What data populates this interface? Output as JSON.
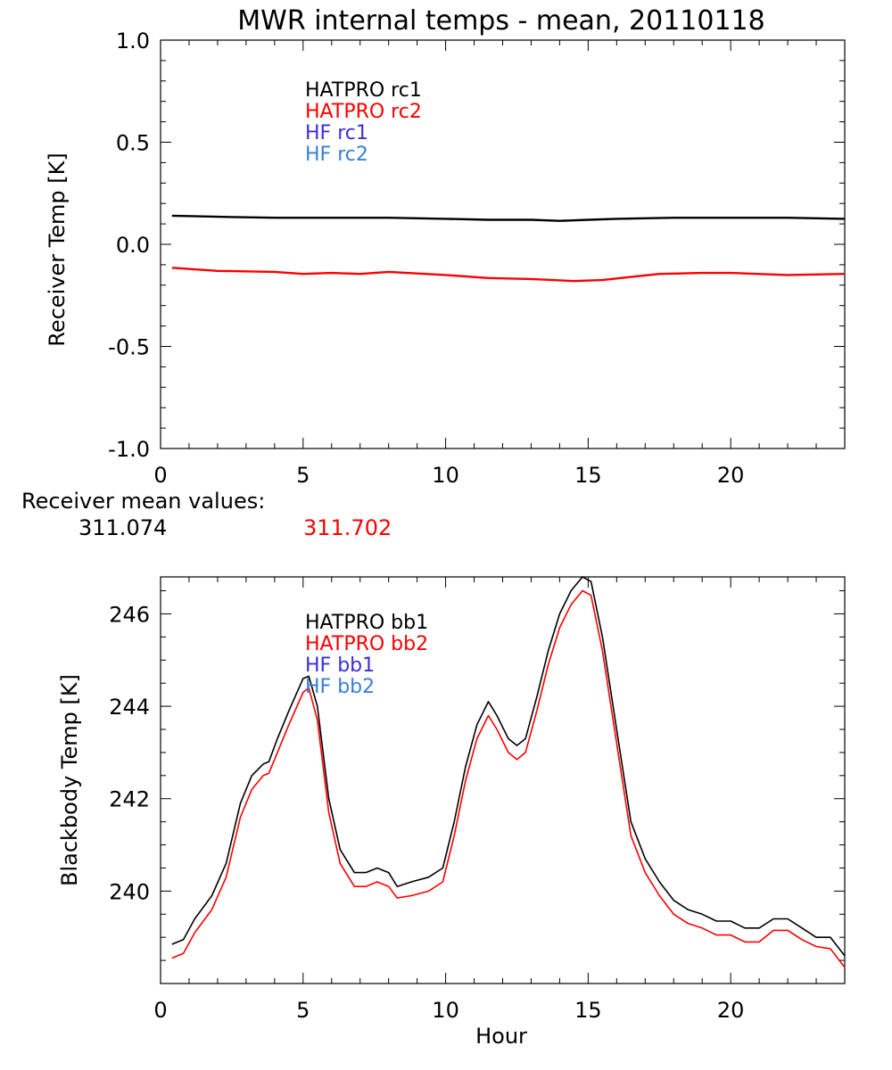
{
  "title": "MWR internal temps - mean, 20110118",
  "colors": {
    "black": "#000000",
    "red": "#ff0000",
    "blue": "#3b2fd6",
    "lightblue": "#3a7fd9"
  },
  "receiver_mean": {
    "label": "Receiver mean values:",
    "value1": "311.074",
    "value2": "311.702"
  },
  "chart_data": [
    {
      "type": "line",
      "xlabel": "",
      "ylabel": "Receiver Temp [K]",
      "xlim": [
        0,
        24
      ],
      "ylim": [
        -1.0,
        1.0
      ],
      "xticks": [
        "0",
        "5",
        "10",
        "15",
        "20"
      ],
      "yticks": [
        "1.0",
        "0.5",
        "0.0",
        "-0.5",
        "-1.0"
      ],
      "legend": [
        "HATPRO rc1",
        "HATPRO rc2",
        "HF rc1",
        "HF rc2"
      ],
      "legend_colors": [
        "#000000",
        "#ff0000",
        "#3b2fd6",
        "#3a7fd9"
      ],
      "series": [
        {
          "name": "HATPRO rc1",
          "color": "#000000",
          "x": [
            0.4,
            2,
            4,
            6,
            8,
            10,
            11.5,
            13,
            14,
            15,
            16,
            18,
            20,
            22,
            24
          ],
          "y": [
            0.14,
            0.135,
            0.13,
            0.13,
            0.13,
            0.125,
            0.12,
            0.12,
            0.115,
            0.12,
            0.125,
            0.13,
            0.13,
            0.13,
            0.125
          ]
        },
        {
          "name": "HATPRO rc2",
          "color": "#ff0000",
          "x": [
            0.4,
            2,
            4,
            5,
            6,
            7,
            8,
            10,
            11.5,
            13,
            14.5,
            15.5,
            16.5,
            17.5,
            19,
            20,
            22,
            24
          ],
          "y": [
            -0.115,
            -0.13,
            -0.135,
            -0.145,
            -0.14,
            -0.145,
            -0.135,
            -0.15,
            -0.165,
            -0.17,
            -0.18,
            -0.175,
            -0.16,
            -0.145,
            -0.14,
            -0.14,
            -0.15,
            -0.145
          ]
        }
      ]
    },
    {
      "type": "line",
      "xlabel": "Hour",
      "ylabel": "Blackbody Temp [K]",
      "xlim": [
        0,
        24
      ],
      "ylim": [
        238.0,
        246.8
      ],
      "xticks": [
        "0",
        "5",
        "10",
        "15",
        "20"
      ],
      "yticks": [
        "246",
        "244",
        "242",
        "240"
      ],
      "legend": [
        "HATPRO bb1",
        "HATPRO bb2",
        "HF bb1",
        "HF bb2"
      ],
      "legend_colors": [
        "#000000",
        "#ff0000",
        "#3b2fd6",
        "#3a7fd9"
      ],
      "series": [
        {
          "name": "HATPRO bb1",
          "color": "#000000",
          "x": [
            0.4,
            0.8,
            1.2,
            1.8,
            2.3,
            2.8,
            3.2,
            3.6,
            3.8,
            4.1,
            4.5,
            5.0,
            5.2,
            5.5,
            5.9,
            6.3,
            6.8,
            7.2,
            7.6,
            8.0,
            8.3,
            8.8,
            9.4,
            9.9,
            10.3,
            10.7,
            11.1,
            11.5,
            11.8,
            12.2,
            12.5,
            12.8,
            13.2,
            13.6,
            14.0,
            14.4,
            14.8,
            15.1,
            15.5,
            16.0,
            16.5,
            17.0,
            17.5,
            18.0,
            18.5,
            19.0,
            19.5,
            20.0,
            20.5,
            21.0,
            21.5,
            22.0,
            22.5,
            23.0,
            23.5,
            24.0
          ],
          "y": [
            238.85,
            238.95,
            239.4,
            239.9,
            240.6,
            241.9,
            242.5,
            242.75,
            242.8,
            243.3,
            243.9,
            244.6,
            244.65,
            244.0,
            242.0,
            240.9,
            240.4,
            240.4,
            240.5,
            240.4,
            240.1,
            240.2,
            240.3,
            240.5,
            241.5,
            242.7,
            243.6,
            244.1,
            243.8,
            243.3,
            243.15,
            243.3,
            244.2,
            245.2,
            246.0,
            246.5,
            246.8,
            246.7,
            245.5,
            243.5,
            241.5,
            240.7,
            240.2,
            239.8,
            239.6,
            239.5,
            239.35,
            239.35,
            239.2,
            239.2,
            239.4,
            239.4,
            239.2,
            239.0,
            239.0,
            238.6
          ]
        },
        {
          "name": "HATPRO bb2",
          "color": "#ff0000",
          "x": [
            0.4,
            0.8,
            1.2,
            1.8,
            2.3,
            2.8,
            3.2,
            3.6,
            3.8,
            4.1,
            4.5,
            5.0,
            5.2,
            5.5,
            5.9,
            6.3,
            6.8,
            7.2,
            7.6,
            8.0,
            8.3,
            8.8,
            9.4,
            9.9,
            10.3,
            10.7,
            11.1,
            11.5,
            11.8,
            12.2,
            12.5,
            12.8,
            13.2,
            13.6,
            14.0,
            14.4,
            14.8,
            15.1,
            15.5,
            16.0,
            16.5,
            17.0,
            17.5,
            18.0,
            18.5,
            19.0,
            19.5,
            20.0,
            20.5,
            21.0,
            21.5,
            22.0,
            22.5,
            23.0,
            23.5,
            24.0
          ],
          "y": [
            238.55,
            238.65,
            239.1,
            239.6,
            240.3,
            241.6,
            242.2,
            242.5,
            242.55,
            243.0,
            243.6,
            244.3,
            244.4,
            243.7,
            241.7,
            240.6,
            240.1,
            240.1,
            240.2,
            240.1,
            239.85,
            239.9,
            240.0,
            240.2,
            241.2,
            242.4,
            243.3,
            243.8,
            243.5,
            243.0,
            242.85,
            243.0,
            243.9,
            244.9,
            245.7,
            246.2,
            246.5,
            246.4,
            245.2,
            243.2,
            241.2,
            240.4,
            239.9,
            239.5,
            239.3,
            239.2,
            239.05,
            239.05,
            238.9,
            238.9,
            239.15,
            239.15,
            238.95,
            238.8,
            238.75,
            238.35
          ]
        }
      ]
    }
  ]
}
